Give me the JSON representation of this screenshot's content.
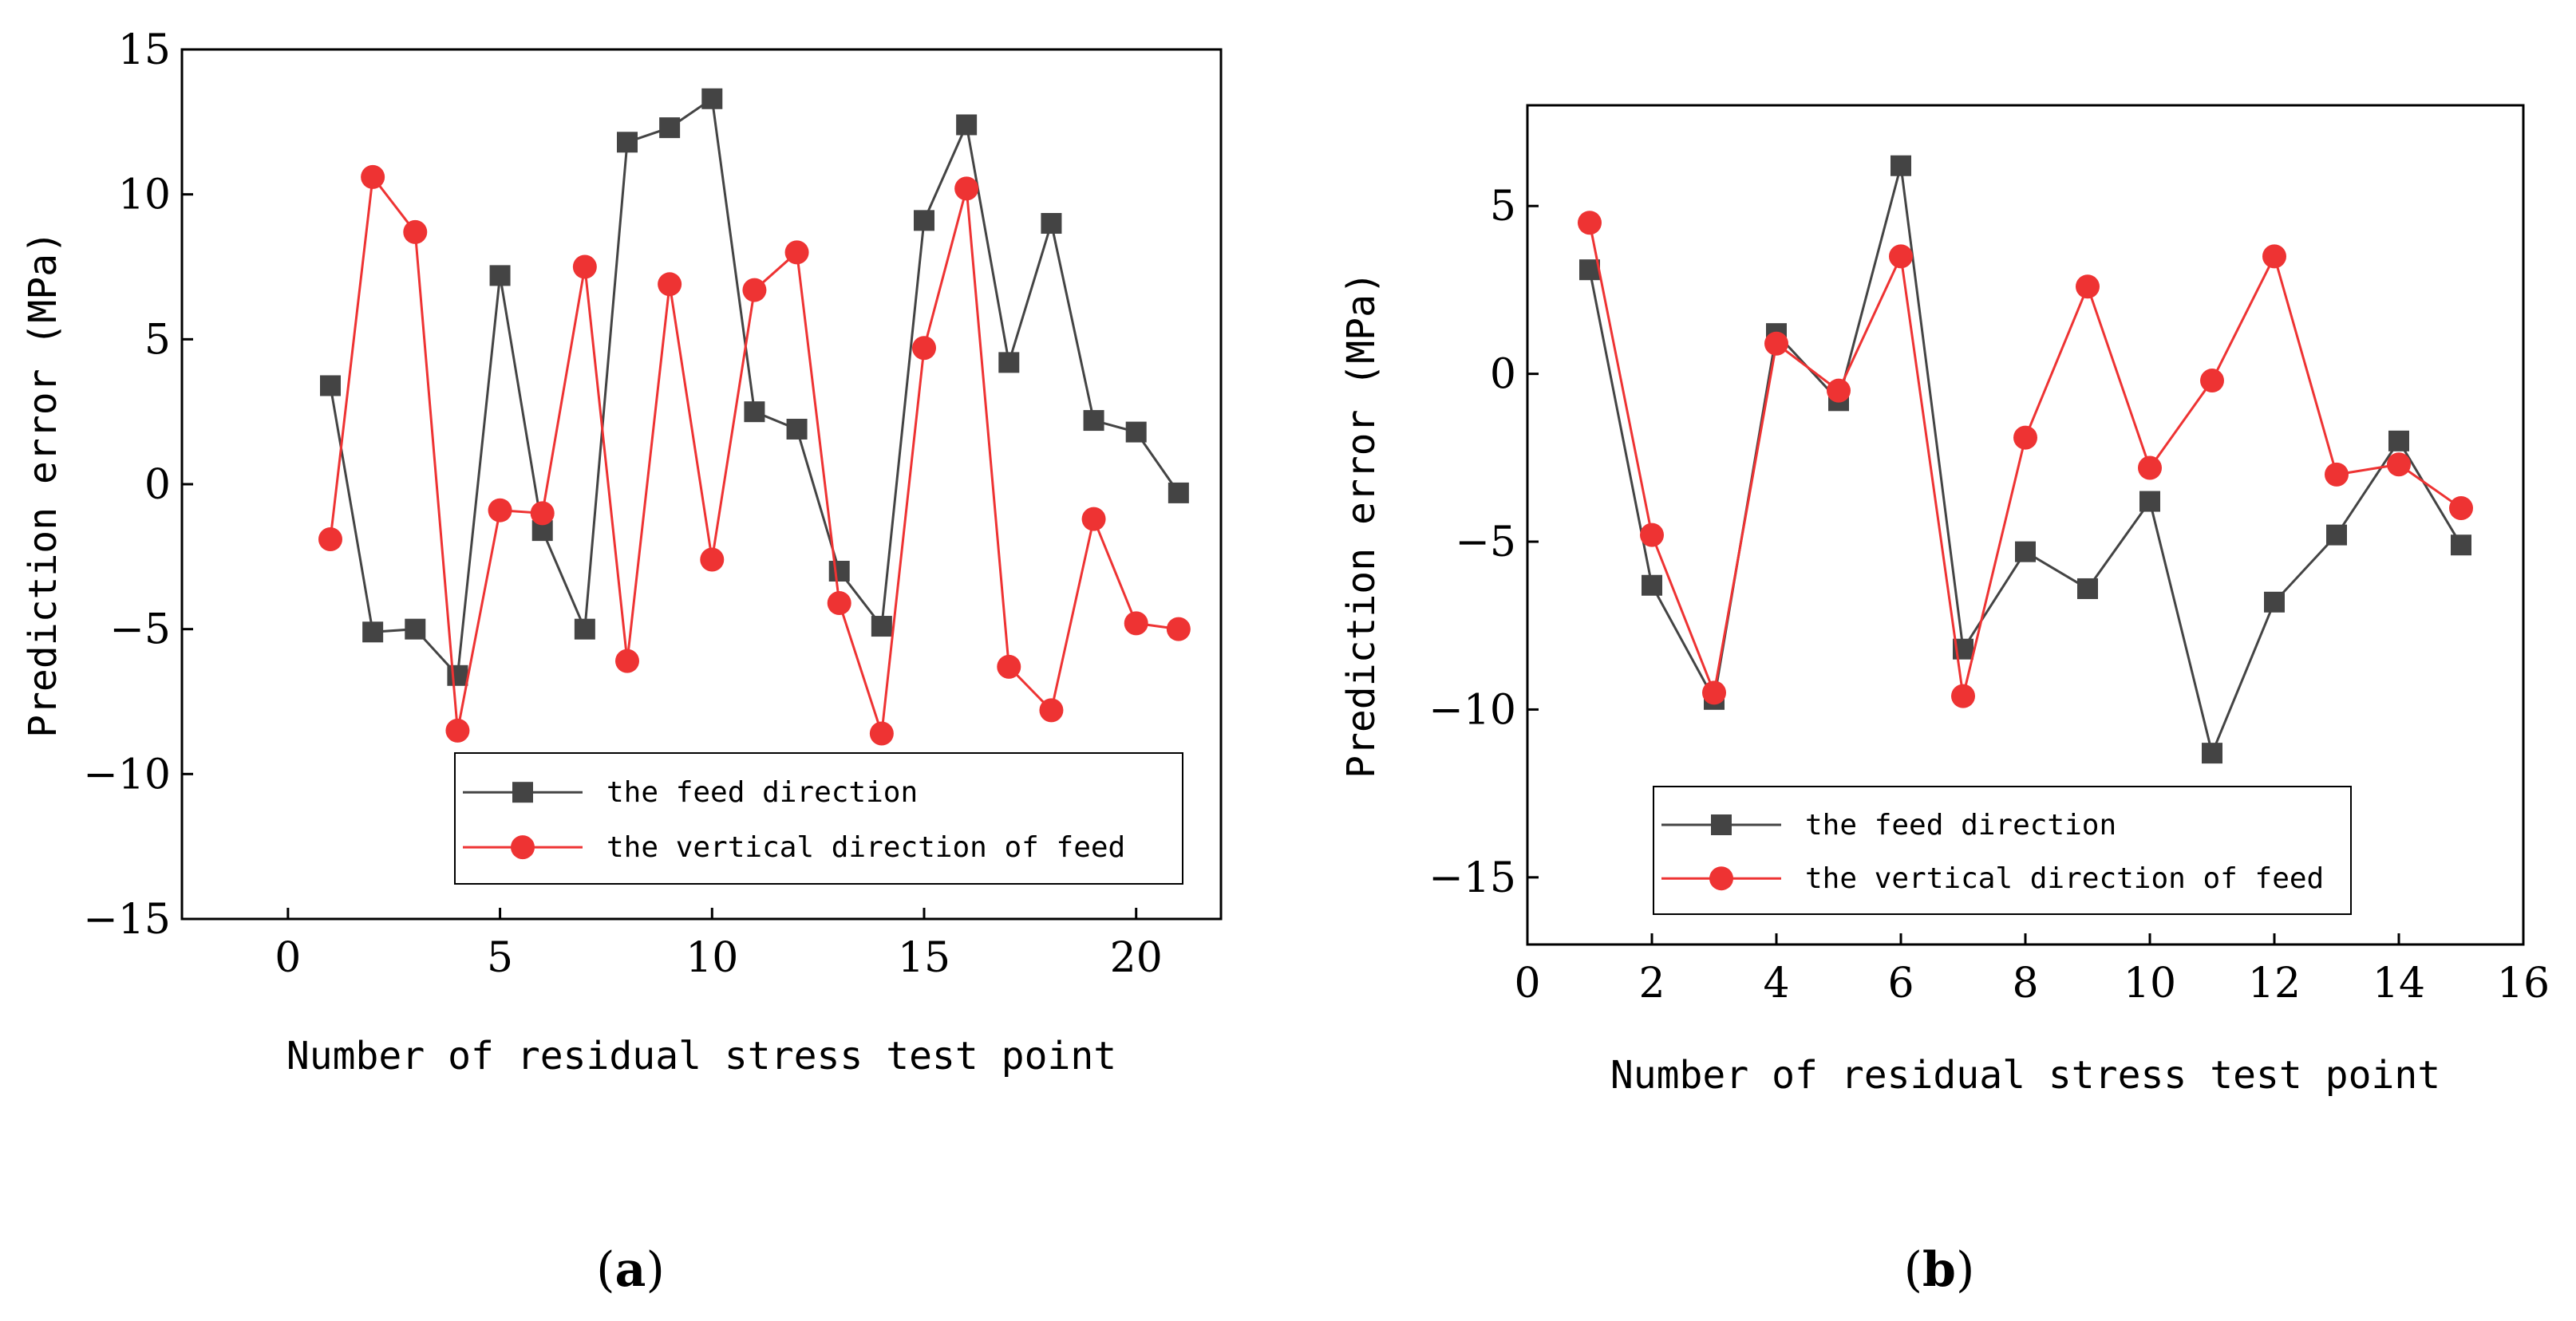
{
  "chart_data": [
    {
      "type": "line",
      "panel_label_open": "(",
      "panel_label_letter": "a",
      "panel_label_close": ")",
      "xlabel": "Number of residual stress test point",
      "ylabel": "Prediction error (MPa)",
      "xlim": [
        -2.5,
        22
      ],
      "ylim": [
        -15,
        15
      ],
      "xticks": [
        0,
        5,
        10,
        15,
        20
      ],
      "yticks": [
        -15,
        -10,
        -5,
        0,
        5,
        10,
        15
      ],
      "xtick_labels": [
        "0",
        "5",
        "10",
        "15",
        "20"
      ],
      "ytick_labels": [
        "−15",
        "−10",
        "−5",
        "0",
        "5",
        "10",
        "15"
      ],
      "x": [
        1,
        2,
        3,
        4,
        5,
        6,
        7,
        8,
        9,
        10,
        11,
        12,
        13,
        14,
        15,
        16,
        17,
        18,
        19,
        20,
        21
      ],
      "series": [
        {
          "name": "the feed direction",
          "color": "#444444",
          "marker": "square",
          "values": [
            3.4,
            -5.1,
            -5.0,
            -6.6,
            7.2,
            -1.6,
            -5.0,
            11.8,
            12.3,
            13.3,
            2.5,
            1.9,
            -3.0,
            -4.9,
            9.1,
            12.4,
            4.2,
            9.0,
            2.2,
            1.8,
            -0.3
          ]
        },
        {
          "name": "the vertical direction of feed",
          "color": "#ee3333",
          "marker": "circle",
          "values": [
            -1.9,
            10.6,
            8.7,
            -8.5,
            -0.9,
            -1.0,
            7.5,
            -6.1,
            6.9,
            -2.6,
            6.7,
            8.0,
            -4.1,
            -8.6,
            4.7,
            10.2,
            -6.3,
            -7.8,
            -1.2,
            -4.8,
            -5.0
          ]
        }
      ],
      "legend": "bottom-right"
    },
    {
      "type": "line",
      "panel_label_open": "(",
      "panel_label_letter": "b",
      "panel_label_close": ")",
      "xlabel": "Number of residual stress test point",
      "ylabel": "Prediction error (MPa)",
      "xlim": [
        0,
        16
      ],
      "ylim": [
        -17,
        8
      ],
      "xticks": [
        0,
        2,
        4,
        6,
        8,
        10,
        12,
        14,
        16
      ],
      "yticks": [
        -15,
        -10,
        -5,
        0,
        5
      ],
      "xtick_labels": [
        "0",
        "2",
        "4",
        "6",
        "8",
        "10",
        "12",
        "14",
        "16"
      ],
      "ytick_labels": [
        "−15",
        "−10",
        "−5",
        "0",
        "5"
      ],
      "x": [
        1,
        2,
        3,
        4,
        5,
        6,
        7,
        8,
        9,
        10,
        11,
        12,
        13,
        14,
        15
      ],
      "series": [
        {
          "name": "the feed direction",
          "color": "#444444",
          "marker": "square",
          "values": [
            3.1,
            -6.3,
            -9.7,
            1.2,
            -0.8,
            6.2,
            -8.2,
            -5.3,
            -6.4,
            -3.8,
            -11.3,
            -6.8,
            -4.8,
            -2.0,
            -5.1
          ]
        },
        {
          "name": "the vertical direction of feed",
          "color": "#ee3333",
          "marker": "circle",
          "values": [
            4.5,
            -4.8,
            -9.5,
            0.9,
            -0.5,
            3.5,
            -9.6,
            -1.9,
            2.6,
            -2.8,
            -0.2,
            3.5,
            -3.0,
            -2.7,
            -4.0
          ]
        }
      ],
      "legend": "bottom-left"
    }
  ]
}
